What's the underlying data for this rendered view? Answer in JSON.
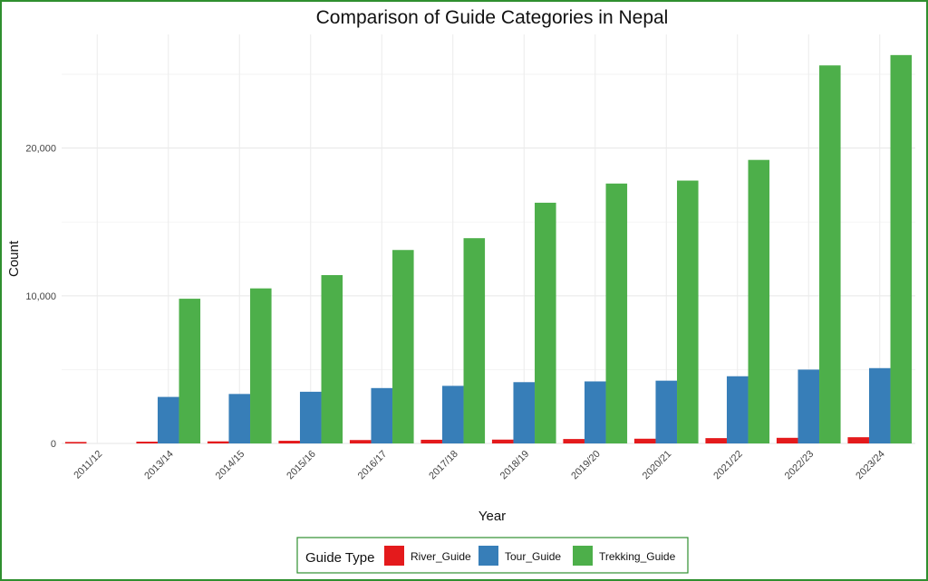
{
  "chart_data": {
    "type": "bar",
    "title": "Comparison of Guide Categories in Nepal",
    "xlabel": "Year",
    "ylabel": "Count",
    "categories": [
      "2011/12",
      "2013/14",
      "2014/15",
      "2015/16",
      "2016/17",
      "2017/18",
      "2018/19",
      "2019/20",
      "2020/21",
      "2021/22",
      "2022/23",
      "2023/24"
    ],
    "series": [
      {
        "name": "River_Guide",
        "color": "#e41a1c",
        "values": [
          100,
          120,
          140,
          180,
          230,
          250,
          260,
          300,
          320,
          360,
          380,
          420
        ]
      },
      {
        "name": "Tour_Guide",
        "color": "#377eb8",
        "values": [
          null,
          3150,
          3350,
          3500,
          3750,
          3900,
          4150,
          4200,
          4250,
          4550,
          5000,
          5100
        ]
      },
      {
        "name": "Trekking_Guide",
        "color": "#4daf4a",
        "values": [
          null,
          9800,
          10500,
          11400,
          13100,
          13900,
          16300,
          17600,
          17800,
          19200,
          25600,
          26300
        ]
      }
    ],
    "ylim": [
      0,
      27700
    ],
    "yticks": [
      0,
      10000,
      20000
    ],
    "ytick_labels": [
      "0",
      "10,000",
      "20,000"
    ],
    "grid": true,
    "legend": {
      "title": "Guide Type",
      "placement": "bottom"
    }
  }
}
